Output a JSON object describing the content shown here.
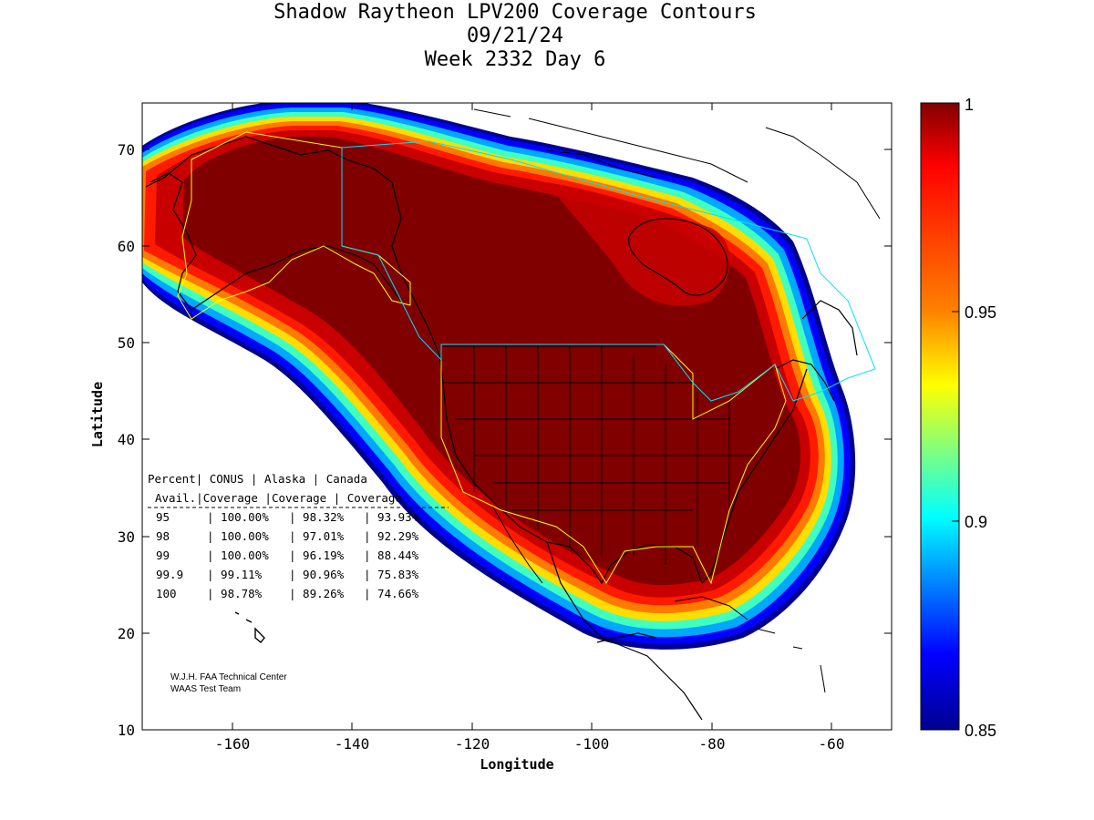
{
  "title": {
    "line1": "Shadow Raytheon LPV200 Coverage Contours",
    "line2": "09/21/24",
    "line3": "Week 2332 Day 6"
  },
  "axes": {
    "xlabel": "Longitude",
    "ylabel": "Latitude",
    "x_ticks": [
      "-160",
      "-140",
      "-120",
      "-100",
      "-80",
      "-60"
    ],
    "y_ticks": [
      "70",
      "60",
      "50",
      "40",
      "30",
      "20",
      "10"
    ]
  },
  "colorbar": {
    "ticks": [
      "1",
      "0.95",
      "0.9",
      "0.85"
    ],
    "colors": {
      "top": "#800000",
      "red": "#ff0000",
      "orange": "#ff8000",
      "yellow": "#ffff00",
      "cyan": "#00ffff",
      "blue": "#0000ff",
      "bottom": "#00008f"
    }
  },
  "stats_table": {
    "header1": [
      "Percent",
      "CONUS",
      "Alaska",
      "Canada"
    ],
    "header2": [
      "Avail.",
      "Coverage",
      "Coverage",
      "Coverage"
    ],
    "rows": [
      [
        "95",
        "100.00%",
        "98.32%",
        "93.93%"
      ],
      [
        "98",
        "100.00%",
        "97.01%",
        "92.29%"
      ],
      [
        "99",
        "100.00%",
        "96.19%",
        "88.44%"
      ],
      [
        "99.9",
        "99.11%",
        "90.96%",
        "75.83%"
      ],
      [
        "100",
        "98.78%",
        "89.26%",
        "74.66%"
      ]
    ]
  },
  "credit": {
    "line1": "W.J.H. FAA Technical Center",
    "line2": "WAAS Test Team"
  },
  "chart_data": {
    "type": "heatmap",
    "xlim": [
      -175,
      -50
    ],
    "ylim": [
      10,
      75
    ],
    "color_range": [
      0.85,
      1
    ],
    "xlabel": "Longitude",
    "ylabel": "Latitude"
  }
}
